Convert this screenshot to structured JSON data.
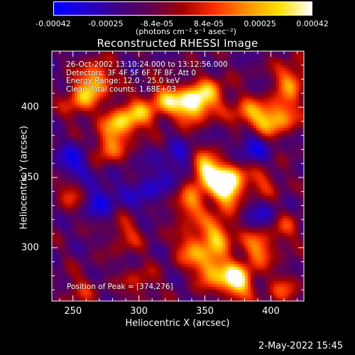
{
  "colorbar": {
    "ticks": [
      "-0.00042",
      "-0.00025",
      "-8.4e-05",
      "8.4e-05",
      "0.00025",
      "0.00042"
    ],
    "tick_values": [
      -0.00042,
      -0.00025,
      -8.4e-05,
      8.4e-05,
      0.00025,
      0.00042
    ],
    "range": [
      -0.00042,
      0.00042
    ],
    "unit": "(photons cm⁻² s⁻¹ asec⁻²)",
    "colors": [
      "#0000ff",
      "#2000d0",
      "#400080",
      "#600050",
      "#a00000",
      "#ff3000",
      "#ff9000",
      "#ffe000",
      "#ffffff"
    ]
  },
  "chart_data": {
    "type": "heatmap",
    "title": "Reconstructed RHESSI Image",
    "xlabel": "Heliocentric X (arcsec)",
    "ylabel": "Heliocentric Y (arcsec)",
    "xlim": [
      234,
      425
    ],
    "ylim": [
      262,
      440
    ],
    "xticks": [
      250,
      300,
      350,
      400
    ],
    "yticks": [
      300,
      350,
      400
    ],
    "info_lines": [
      "26-Oct-2002 13:10:24.000 to 13:12:56.000",
      "Detectors: 3F 4F 5F 6F 7F 8F, Att 0",
      "Energy Range: 12.0 - 25.0 keV",
      "Clean   Total counts: 1.68E+03"
    ],
    "peak_label": "Position of Peak = [374,276]",
    "peak": [
      374,
      276
    ],
    "sources": [
      {
        "x": 340,
        "y": 402,
        "amp": 1.0
      },
      {
        "x": 374,
        "y": 276,
        "amp": 1.0
      },
      {
        "x": 320,
        "y": 405,
        "amp": 0.65
      },
      {
        "x": 355,
        "y": 410,
        "amp": 0.55
      },
      {
        "x": 268,
        "y": 420,
        "amp": 0.75
      },
      {
        "x": 255,
        "y": 405,
        "amp": 0.6
      },
      {
        "x": 285,
        "y": 388,
        "amp": 0.7
      },
      {
        "x": 300,
        "y": 395,
        "amp": 0.55
      },
      {
        "x": 275,
        "y": 370,
        "amp": 0.55
      },
      {
        "x": 350,
        "y": 355,
        "amp": 0.95
      },
      {
        "x": 365,
        "y": 340,
        "amp": 0.75
      },
      {
        "x": 370,
        "y": 350,
        "amp": 0.65
      },
      {
        "x": 338,
        "y": 330,
        "amp": 0.6
      },
      {
        "x": 360,
        "y": 310,
        "amp": 0.7
      },
      {
        "x": 340,
        "y": 300,
        "amp": 0.6
      },
      {
        "x": 390,
        "y": 300,
        "amp": 0.65
      },
      {
        "x": 355,
        "y": 285,
        "amp": 0.75
      },
      {
        "x": 380,
        "y": 395,
        "amp": 0.5
      },
      {
        "x": 395,
        "y": 390,
        "amp": 0.6
      },
      {
        "x": 410,
        "y": 395,
        "amp": 0.6
      },
      {
        "x": 415,
        "y": 420,
        "amp": 0.65
      },
      {
        "x": 395,
        "y": 345,
        "amp": 0.45
      },
      {
        "x": 410,
        "y": 315,
        "amp": 0.4
      },
      {
        "x": 250,
        "y": 340,
        "amp": 0.45
      },
      {
        "x": 290,
        "y": 310,
        "amp": 0.4
      },
      {
        "x": 300,
        "y": 275,
        "amp": 0.35
      },
      {
        "x": 410,
        "y": 270,
        "amp": 0.4
      },
      {
        "x": 255,
        "y": 270,
        "amp": 0.3
      }
    ],
    "minima": [
      {
        "x": 252,
        "y": 360,
        "amp": 0.55
      },
      {
        "x": 270,
        "y": 335,
        "amp": 0.5
      },
      {
        "x": 330,
        "y": 360,
        "amp": 0.45
      },
      {
        "x": 385,
        "y": 372,
        "amp": 0.5
      },
      {
        "x": 305,
        "y": 340,
        "amp": 0.4
      },
      {
        "x": 395,
        "y": 325,
        "amp": 0.4
      }
    ]
  },
  "footer": {
    "date": "2-May-2022 15:45"
  }
}
